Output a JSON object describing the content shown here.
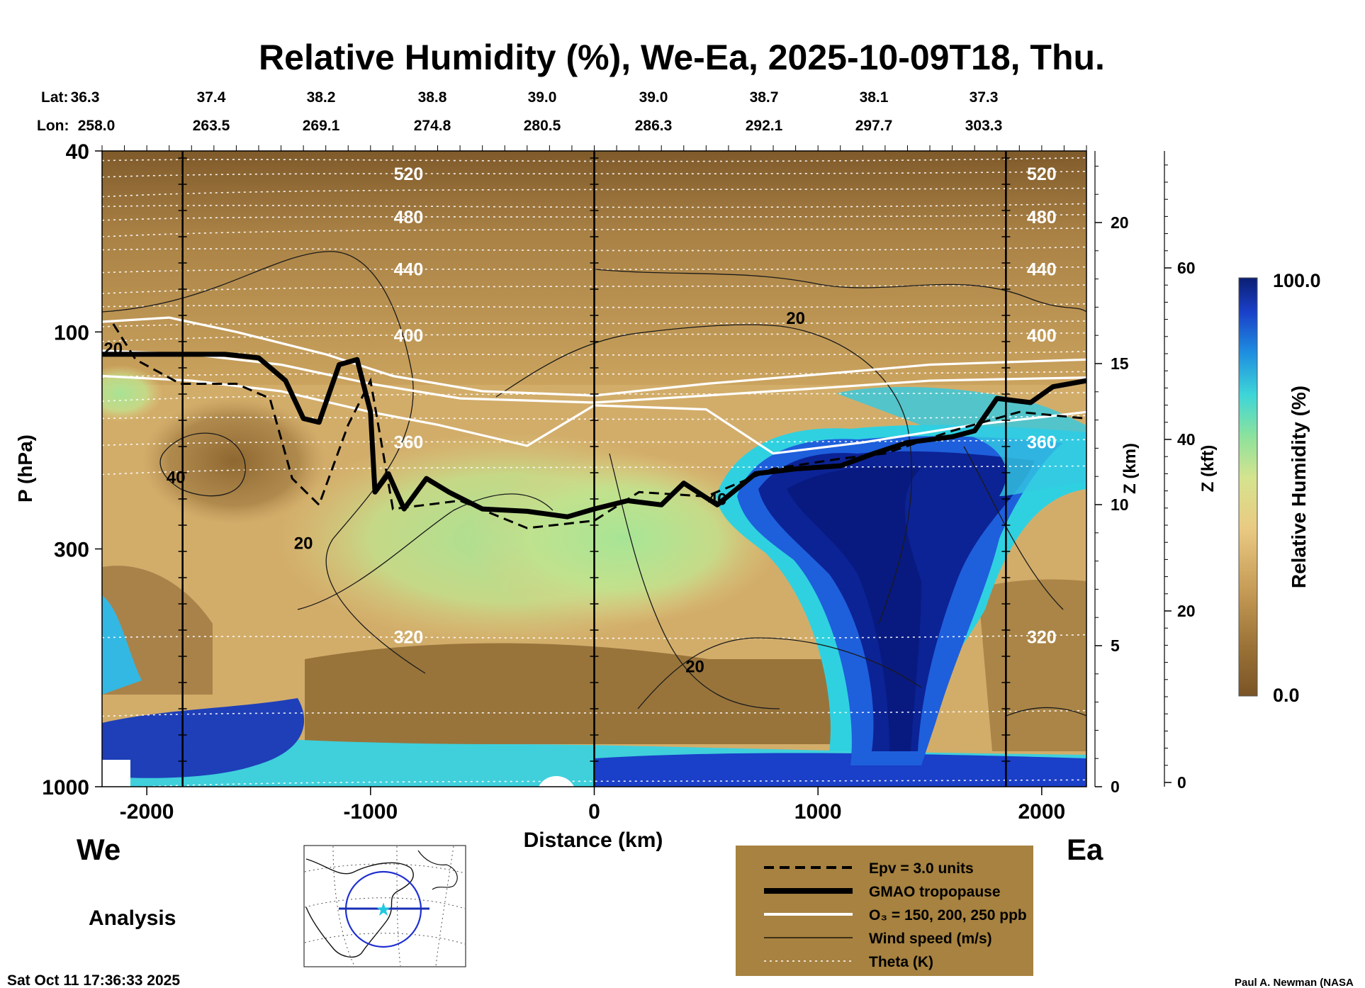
{
  "chart_data": {
    "type": "heatmap",
    "title": "Relative Humidity (%), We-Ea, 2025-10-09T18, Thu.",
    "xlabel": "Distance (km)",
    "ylabel": "P (hPa)",
    "y2label": "Z (km)",
    "y3label": "Z (kft)",
    "colorbar_label": "Relative Humidity (%)",
    "colorbar_max": "100.0",
    "colorbar_min": "0.0",
    "xlim": [
      -2200,
      2200
    ],
    "ylim_hpa": [
      1000,
      40
    ],
    "x_ticks": [
      "-2000",
      "-1000",
      "0",
      "1000",
      "2000"
    ],
    "x_tick_values": [
      -2000,
      -1000,
      0,
      1000,
      2000
    ],
    "p_ticks": [
      "40",
      "100",
      "300",
      "1000"
    ],
    "p_tick_values": [
      40,
      100,
      300,
      1000
    ],
    "z_km_ticks": [
      "0",
      "5",
      "10",
      "15",
      "20"
    ],
    "z_kft_ticks": [
      "0",
      "20",
      "40",
      "60"
    ],
    "lat_label": "Lat:",
    "lon_label": "Lon:",
    "lat_values": [
      "36.3",
      "37.4",
      "38.2",
      "38.8",
      "39.0",
      "39.0",
      "38.7",
      "38.1",
      "37.3"
    ],
    "lon_values": [
      "258.0",
      "263.5",
      "269.1",
      "274.8",
      "280.5",
      "286.3",
      "292.1",
      "297.7",
      "303.3"
    ],
    "theta_labels": [
      "520",
      "480",
      "440",
      "400",
      "360",
      "320",
      "520",
      "480",
      "440",
      "400",
      "360",
      "320"
    ],
    "wind_labels": [
      "20",
      "40",
      "20",
      "20",
      "40",
      "20"
    ],
    "tropopause": [
      {
        "x": -2200,
        "p": 112
      },
      {
        "x": -1650,
        "p": 112
      },
      {
        "x": -1500,
        "p": 114
      },
      {
        "x": -1380,
        "p": 128
      },
      {
        "x": -1300,
        "p": 155
      },
      {
        "x": -1230,
        "p": 158
      },
      {
        "x": -1140,
        "p": 118
      },
      {
        "x": -1060,
        "p": 115
      },
      {
        "x": -1000,
        "p": 150
      },
      {
        "x": -980,
        "p": 225
      },
      {
        "x": -920,
        "p": 205
      },
      {
        "x": -850,
        "p": 245
      },
      {
        "x": -750,
        "p": 210
      },
      {
        "x": -650,
        "p": 225
      },
      {
        "x": -500,
        "p": 245
      },
      {
        "x": -300,
        "p": 248
      },
      {
        "x": -120,
        "p": 255
      },
      {
        "x": 0,
        "p": 245
      },
      {
        "x": 150,
        "p": 235
      },
      {
        "x": 300,
        "p": 240
      },
      {
        "x": 400,
        "p": 215
      },
      {
        "x": 550,
        "p": 240
      },
      {
        "x": 720,
        "p": 205
      },
      {
        "x": 900,
        "p": 200
      },
      {
        "x": 1100,
        "p": 197
      },
      {
        "x": 1250,
        "p": 185
      },
      {
        "x": 1400,
        "p": 175
      },
      {
        "x": 1600,
        "p": 170
      },
      {
        "x": 1700,
        "p": 165
      },
      {
        "x": 1800,
        "p": 140
      },
      {
        "x": 1950,
        "p": 143
      },
      {
        "x": 2050,
        "p": 132
      },
      {
        "x": 2200,
        "p": 128
      }
    ],
    "ozone_150": [
      {
        "x": -2200,
        "p": 95
      },
      {
        "x": -1900,
        "p": 93
      },
      {
        "x": -1600,
        "p": 100
      },
      {
        "x": -1200,
        "p": 112
      },
      {
        "x": -900,
        "p": 125
      },
      {
        "x": -500,
        "p": 135
      },
      {
        "x": 0,
        "p": 138
      },
      {
        "x": 500,
        "p": 130
      },
      {
        "x": 1000,
        "p": 124
      },
      {
        "x": 1500,
        "p": 118
      },
      {
        "x": 2200,
        "p": 115
      }
    ],
    "ozone_200": [
      {
        "x": -2200,
        "p": 110
      },
      {
        "x": -1800,
        "p": 112
      },
      {
        "x": -1400,
        "p": 118
      },
      {
        "x": -1000,
        "p": 130
      },
      {
        "x": -600,
        "p": 140
      },
      {
        "x": 0,
        "p": 143
      },
      {
        "x": 500,
        "p": 138
      },
      {
        "x": 1000,
        "p": 133
      },
      {
        "x": 1500,
        "p": 128
      },
      {
        "x": 2200,
        "p": 126
      }
    ],
    "ozone_250": [
      {
        "x": -2200,
        "p": 125
      },
      {
        "x": -1800,
        "p": 128
      },
      {
        "x": -1400,
        "p": 135
      },
      {
        "x": -1000,
        "p": 150
      },
      {
        "x": -700,
        "p": 160
      },
      {
        "x": -300,
        "p": 178
      },
      {
        "x": 0,
        "p": 145
      },
      {
        "x": 500,
        "p": 148
      },
      {
        "x": 800,
        "p": 185
      },
      {
        "x": 1200,
        "p": 175
      },
      {
        "x": 1700,
        "p": 160
      },
      {
        "x": 2200,
        "p": 150
      }
    ],
    "epv": [
      {
        "x": -2150,
        "p": 96
      },
      {
        "x": -2050,
        "p": 115
      },
      {
        "x": -1850,
        "p": 130
      },
      {
        "x": -1600,
        "p": 130
      },
      {
        "x": -1450,
        "p": 140
      },
      {
        "x": -1350,
        "p": 210
      },
      {
        "x": -1230,
        "p": 240
      },
      {
        "x": -1100,
        "p": 160
      },
      {
        "x": -1000,
        "p": 128
      },
      {
        "x": -900,
        "p": 245
      },
      {
        "x": -600,
        "p": 235
      },
      {
        "x": -300,
        "p": 270
      },
      {
        "x": 0,
        "p": 260
      },
      {
        "x": 200,
        "p": 225
      },
      {
        "x": 500,
        "p": 230
      },
      {
        "x": 800,
        "p": 200
      },
      {
        "x": 1100,
        "p": 190
      },
      {
        "x": 1300,
        "p": 185
      },
      {
        "x": 1600,
        "p": 165
      },
      {
        "x": 1900,
        "p": 150
      },
      {
        "x": 2200,
        "p": 155
      }
    ],
    "theta_levels_hpa": [
      {
        "theta": "520",
        "p": 45
      },
      {
        "theta": "480",
        "p": 56
      },
      {
        "theta": "440",
        "p": 73
      },
      {
        "theta": "400",
        "p": 102
      },
      {
        "theta": "360",
        "p": 175
      },
      {
        "theta": "320",
        "p": 470
      }
    ]
  },
  "legend": {
    "items": [
      {
        "label": "Epv = 3.0 units",
        "style": "dashed"
      },
      {
        "label": "GMAO tropopause",
        "style": "thick"
      },
      {
        "label": "O₃ = 150, 200, 250 ppb",
        "style": "white"
      },
      {
        "label": "Wind speed (m/s)",
        "style": "thin"
      },
      {
        "label": "Theta (K)",
        "style": "dotted"
      }
    ]
  },
  "direction_left": "We",
  "direction_right": "Ea",
  "analysis_label": "Analysis",
  "timestamp": "Sat Oct 11 17:36:33 2025",
  "credit": "Paul A. Newman (NASA",
  "colors": {
    "rh_dry": "#86612c",
    "rh_mid": "#c7a267",
    "rh_tan": "#e2c27e",
    "rh_green": "#a9e29a",
    "rh_cyan": "#41d6e0",
    "rh_blue": "#1f5fd6",
    "rh_navy": "#0b1f7a",
    "legend_bg": "#a78240"
  }
}
